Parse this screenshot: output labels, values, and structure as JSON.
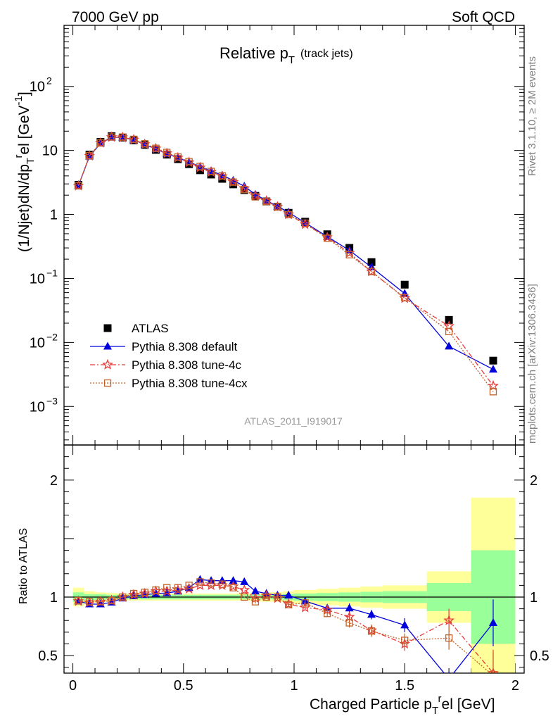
{
  "header": {
    "left": "7000 GeV pp",
    "right": "Soft QCD"
  },
  "side_labels": {
    "rivet": "Rivet 3.1.10, ≥ 2M events",
    "mcplots": "mcplots.cern.ch [arXiv:1306.3436]"
  },
  "analysis_id": "ATLAS_2011_I919017",
  "colors": {
    "atlas": "#000000",
    "default": "#0000dd",
    "tune4c": "#e83a3a",
    "tune4cx": "#c0622a",
    "band_inner": "#99ff99",
    "band_outer": "#ffff99"
  },
  "chart_data": [
    {
      "type": "scatter",
      "title_main": "Relative p",
      "title_sub": "T",
      "title_note": "(track jets)",
      "ylabel": "(1/Njet)dN/dp_T^rel [GeV^-1]",
      "yscale": "log",
      "ylim": [
        0.00025,
        900
      ],
      "xlim": [
        -0.04,
        2.04
      ],
      "y_tick_labels": [
        "10^-3",
        "10^-2",
        "10^-1",
        "1",
        "10",
        "10^2"
      ],
      "legend_position": "bottom-left",
      "x": [
        0.025,
        0.075,
        0.125,
        0.175,
        0.225,
        0.275,
        0.325,
        0.375,
        0.425,
        0.475,
        0.525,
        0.575,
        0.625,
        0.675,
        0.725,
        0.775,
        0.825,
        0.875,
        0.925,
        0.975,
        1.05,
        1.15,
        1.25,
        1.35,
        1.5,
        1.7,
        1.9
      ],
      "series": [
        {
          "name": "ATLAS",
          "style": "square",
          "values": [
            2.9,
            8.6,
            13.6,
            16.7,
            15.9,
            14.4,
            12.2,
            10.2,
            8.6,
            7.3,
            6.1,
            4.9,
            4.2,
            3.6,
            2.95,
            2.4,
            1.95,
            1.6,
            1.32,
            1.06,
            0.77,
            0.49,
            0.3,
            0.18,
            0.08,
            0.0225,
            0.0052
          ]
        },
        {
          "name": "Pythia 8.308 default",
          "style": "triangle",
          "values": [
            2.8,
            8.1,
            12.9,
            16.0,
            16.0,
            14.6,
            12.4,
            10.5,
            8.9,
            7.7,
            6.6,
            5.6,
            4.8,
            4.1,
            3.4,
            2.75,
            2.05,
            1.65,
            1.34,
            1.08,
            0.74,
            0.45,
            0.275,
            0.15,
            0.058,
            0.0087,
            0.0038
          ]
        },
        {
          "name": "Pythia 8.308 tune-4c",
          "style": "star",
          "values": [
            2.8,
            8.2,
            13.1,
            16.1,
            16.0,
            14.7,
            12.5,
            10.7,
            9.0,
            7.7,
            6.5,
            5.4,
            4.6,
            3.95,
            3.2,
            2.55,
            1.95,
            1.62,
            1.32,
            1.0,
            0.7,
            0.44,
            0.25,
            0.128,
            0.049,
            0.018,
            0.0021
          ]
        },
        {
          "name": "Pythia 8.308 tune-4cx",
          "style": "open-square",
          "values": [
            2.8,
            8.3,
            13.1,
            16.2,
            16.2,
            14.9,
            12.7,
            10.8,
            9.3,
            7.9,
            6.7,
            5.6,
            4.7,
            4.0,
            3.2,
            2.45,
            1.88,
            1.6,
            1.31,
            0.99,
            0.73,
            0.425,
            0.235,
            0.128,
            0.05,
            0.0148,
            0.0017
          ]
        }
      ]
    },
    {
      "type": "line",
      "ylabel": "Ratio to ATLAS",
      "xlabel": "Charged Particle p_T^rel [GeV]",
      "ylim": [
        0.35,
        2.3
      ],
      "xlim": [
        -0.04,
        2.04
      ],
      "y_ticks": [
        0.5,
        1,
        2
      ],
      "y_tick_labels": [
        "0.5",
        "1",
        "2"
      ],
      "x_ticks": [
        0,
        0.5,
        1,
        1.5,
        2
      ],
      "x_tick_labels": [
        "0",
        "0.5",
        "1",
        "1.5",
        "2"
      ],
      "reference_line": 1,
      "bands": {
        "edges": [
          0,
          0.05,
          0.1,
          0.15,
          0.2,
          0.25,
          0.3,
          0.35,
          0.4,
          0.45,
          0.5,
          0.55,
          0.6,
          0.65,
          0.7,
          0.75,
          0.8,
          0.85,
          0.9,
          0.95,
          1.0,
          1.1,
          1.2,
          1.3,
          1.4,
          1.6,
          1.8,
          2.0
        ],
        "inner": [
          0.04,
          0.025,
          0.025,
          0.02,
          0.02,
          0.02,
          0.02,
          0.02,
          0.02,
          0.02,
          0.02,
          0.02,
          0.02,
          0.02,
          0.02,
          0.02,
          0.02,
          0.02,
          0.02,
          0.025,
          0.03,
          0.035,
          0.04,
          0.045,
          0.05,
          0.12,
          0.4
        ],
        "outer": [
          0.08,
          0.05,
          0.04,
          0.035,
          0.03,
          0.03,
          0.03,
          0.03,
          0.03,
          0.03,
          0.03,
          0.03,
          0.03,
          0.03,
          0.03,
          0.03,
          0.035,
          0.04,
          0.04,
          0.05,
          0.06,
          0.07,
          0.08,
          0.09,
          0.1,
          0.22,
          0.85
        ]
      },
      "series": [
        {
          "name": "Pythia 8.308 default",
          "values": [
            0.965,
            0.94,
            0.94,
            0.955,
            0.99,
            1.01,
            1.02,
            1.03,
            1.035,
            1.05,
            1.08,
            1.15,
            1.14,
            1.14,
            1.14,
            1.13,
            1.05,
            1.03,
            1.015,
            1.015,
            0.965,
            0.905,
            0.905,
            0.85,
            0.76,
            0.3,
            0.78
          ],
          "err": [
            0.01,
            0.01,
            0.01,
            0.01,
            0.01,
            0.01,
            0.01,
            0.01,
            0.01,
            0.01,
            0.01,
            0.01,
            0.01,
            0.01,
            0.01,
            0.01,
            0.01,
            0.01,
            0.015,
            0.02,
            0.02,
            0.03,
            0.04,
            0.04,
            0.06,
            0.06,
            0.2
          ]
        },
        {
          "name": "Pythia 8.308 tune-4c",
          "values": [
            0.965,
            0.955,
            0.96,
            0.97,
            1.0,
            1.02,
            1.03,
            1.05,
            1.05,
            1.06,
            1.07,
            1.1,
            1.1,
            1.1,
            1.09,
            1.06,
            0.99,
            1.01,
            0.99,
            0.94,
            0.91,
            0.89,
            0.83,
            0.715,
            0.6,
            0.8,
            0.35
          ],
          "err": [
            0.01,
            0.01,
            0.01,
            0.01,
            0.01,
            0.01,
            0.01,
            0.01,
            0.01,
            0.01,
            0.01,
            0.01,
            0.01,
            0.01,
            0.01,
            0.01,
            0.015,
            0.015,
            0.02,
            0.02,
            0.02,
            0.03,
            0.04,
            0.05,
            0.06,
            0.1,
            0.2
          ]
        },
        {
          "name": "Pythia 8.308 tune-4cx",
          "values": [
            0.97,
            0.96,
            0.96,
            0.97,
            1.0,
            1.03,
            1.04,
            1.06,
            1.08,
            1.08,
            1.1,
            1.13,
            1.12,
            1.11,
            1.08,
            1.0,
            0.96,
            1.0,
            1.0,
            0.935,
            0.95,
            0.86,
            0.78,
            0.71,
            0.63,
            0.65,
            0.33
          ],
          "err": [
            0.01,
            0.01,
            0.01,
            0.01,
            0.01,
            0.01,
            0.01,
            0.01,
            0.01,
            0.01,
            0.01,
            0.01,
            0.01,
            0.01,
            0.01,
            0.01,
            0.015,
            0.015,
            0.02,
            0.02,
            0.02,
            0.03,
            0.04,
            0.05,
            0.06,
            0.1,
            0.2
          ]
        }
      ]
    }
  ]
}
